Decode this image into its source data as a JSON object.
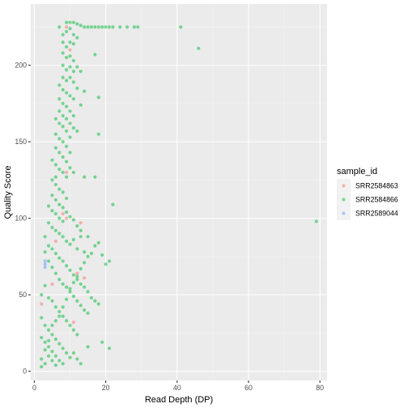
{
  "chart_data": {
    "type": "scatter",
    "xlabel": "Read Depth (DP)",
    "ylabel": "Quality Score",
    "xlim": [
      -1,
      82
    ],
    "ylim": [
      -6,
      240
    ],
    "x_ticks": [
      0,
      20,
      40,
      60,
      80
    ],
    "y_ticks": [
      0,
      50,
      100,
      150,
      200
    ],
    "grid": true,
    "legend_position": "right",
    "legend": {
      "title": "sample_id",
      "entries": [
        "SRR2584863",
        "SRR2584866",
        "SRR2589044"
      ]
    },
    "series": [
      {
        "name": "SRR2584863",
        "color": "#F8766D",
        "points": [
          [
            2,
            44
          ],
          [
            5,
            57
          ],
          [
            6,
            85
          ],
          [
            8,
            103
          ],
          [
            9,
            130
          ],
          [
            9,
            225
          ],
          [
            10,
            210
          ],
          [
            11,
            32
          ],
          [
            12,
            64
          ],
          [
            13,
            97
          ],
          [
            14,
            61
          ],
          [
            9,
            100
          ]
        ]
      },
      {
        "name": "SRR2584866",
        "color": "#00BA38",
        "points": [
          [
            9,
            228
          ],
          [
            10,
            228
          ],
          [
            11,
            228
          ],
          [
            12,
            227
          ],
          [
            13,
            226
          ],
          [
            14,
            225
          ],
          [
            15,
            225
          ],
          [
            16,
            225
          ],
          [
            17,
            225
          ],
          [
            18,
            225
          ],
          [
            19,
            225
          ],
          [
            20,
            225
          ],
          [
            21,
            225
          ],
          [
            22,
            225
          ],
          [
            24,
            225
          ],
          [
            26,
            225
          ],
          [
            28,
            225
          ],
          [
            29,
            225
          ],
          [
            41,
            225
          ],
          [
            46,
            211
          ],
          [
            79,
            98
          ],
          [
            7,
            225
          ],
          [
            8,
            220
          ],
          [
            9,
            222
          ],
          [
            10,
            224
          ],
          [
            11,
            220
          ],
          [
            8,
            215
          ],
          [
            9,
            212
          ],
          [
            10,
            215
          ],
          [
            11,
            214
          ],
          [
            12,
            218
          ],
          [
            17,
            207
          ],
          [
            8,
            208
          ],
          [
            9,
            205
          ],
          [
            10,
            206
          ],
          [
            11,
            203
          ],
          [
            12,
            199
          ],
          [
            13,
            196
          ],
          [
            8,
            200
          ],
          [
            9,
            197
          ],
          [
            10,
            199
          ],
          [
            11,
            196
          ],
          [
            8,
            192
          ],
          [
            9,
            190
          ],
          [
            10,
            192
          ],
          [
            11,
            189
          ],
          [
            12,
            185
          ],
          [
            14,
            183
          ],
          [
            7,
            187
          ],
          [
            8,
            184
          ],
          [
            9,
            182
          ],
          [
            10,
            180
          ],
          [
            11,
            178
          ],
          [
            18,
            179
          ],
          [
            13,
            174
          ],
          [
            7,
            178
          ],
          [
            8,
            175
          ],
          [
            9,
            173
          ],
          [
            10,
            170
          ],
          [
            11,
            167
          ],
          [
            7,
            170
          ],
          [
            8,
            167
          ],
          [
            9,
            165
          ],
          [
            10,
            162
          ],
          [
            11,
            159
          ],
          [
            12,
            157
          ],
          [
            18,
            155
          ],
          [
            6,
            165
          ],
          [
            7,
            162
          ],
          [
            8,
            160
          ],
          [
            9,
            157
          ],
          [
            10,
            153
          ],
          [
            6,
            155
          ],
          [
            7,
            152
          ],
          [
            8,
            150
          ],
          [
            9,
            147
          ],
          [
            10,
            143
          ],
          [
            6,
            146
          ],
          [
            7,
            143
          ],
          [
            8,
            140
          ],
          [
            9,
            137
          ],
          [
            10,
            133
          ],
          [
            11,
            130
          ],
          [
            5,
            138
          ],
          [
            6,
            135
          ],
          [
            7,
            132
          ],
          [
            8,
            130
          ],
          [
            9,
            127
          ],
          [
            14,
            127
          ],
          [
            17,
            127
          ],
          [
            6,
            127
          ],
          [
            5,
            125
          ],
          [
            6,
            122
          ],
          [
            7,
            119
          ],
          [
            8,
            117
          ],
          [
            9,
            113
          ],
          [
            22,
            109
          ],
          [
            5,
            115
          ],
          [
            6,
            112
          ],
          [
            7,
            109
          ],
          [
            8,
            107
          ],
          [
            9,
            104
          ],
          [
            10,
            101
          ],
          [
            4,
            108
          ],
          [
            5,
            105
          ],
          [
            6,
            103
          ],
          [
            7,
            100
          ],
          [
            8,
            98
          ],
          [
            11,
            99
          ],
          [
            12,
            95
          ],
          [
            13,
            92
          ],
          [
            15,
            88
          ],
          [
            4,
            97
          ],
          [
            5,
            94
          ],
          [
            6,
            92
          ],
          [
            7,
            90
          ],
          [
            8,
            88
          ],
          [
            9,
            85
          ],
          [
            10,
            83
          ],
          [
            12,
            80
          ],
          [
            14,
            78
          ],
          [
            16,
            77
          ],
          [
            17,
            82
          ],
          [
            18,
            84
          ],
          [
            19,
            76
          ],
          [
            20,
            70
          ],
          [
            21,
            72
          ],
          [
            11,
            86
          ],
          [
            13,
            88
          ],
          [
            3,
            88
          ],
          [
            4,
            82
          ],
          [
            5,
            80
          ],
          [
            6,
            77
          ],
          [
            7,
            74
          ],
          [
            8,
            72
          ],
          [
            9,
            69
          ],
          [
            10,
            66
          ],
          [
            11,
            63
          ],
          [
            12,
            60
          ],
          [
            13,
            57
          ],
          [
            14,
            55
          ],
          [
            15,
            52
          ],
          [
            16,
            48
          ],
          [
            17,
            46
          ],
          [
            18,
            44
          ],
          [
            3,
            78
          ],
          [
            4,
            72
          ],
          [
            5,
            68
          ],
          [
            6,
            64
          ],
          [
            7,
            60
          ],
          [
            8,
            57
          ],
          [
            9,
            55
          ],
          [
            10,
            52
          ],
          [
            11,
            49
          ],
          [
            12,
            46
          ],
          [
            13,
            43
          ],
          [
            14,
            40
          ],
          [
            15,
            38
          ],
          [
            2,
            50
          ],
          [
            3,
            56
          ],
          [
            4,
            48
          ],
          [
            5,
            46
          ],
          [
            6,
            42
          ],
          [
            7,
            39
          ],
          [
            8,
            36
          ],
          [
            9,
            33
          ],
          [
            10,
            30
          ],
          [
            11,
            27
          ],
          [
            12,
            24
          ],
          [
            2,
            35
          ],
          [
            3,
            30
          ],
          [
            4,
            27
          ],
          [
            5,
            24
          ],
          [
            6,
            21
          ],
          [
            7,
            18
          ],
          [
            8,
            15
          ],
          [
            9,
            12
          ],
          [
            10,
            9
          ],
          [
            11,
            12
          ],
          [
            12,
            8
          ],
          [
            13,
            5
          ],
          [
            15,
            16
          ],
          [
            19,
            19
          ],
          [
            21,
            15
          ],
          [
            2,
            22
          ],
          [
            3,
            19
          ],
          [
            4,
            16
          ],
          [
            5,
            13
          ],
          [
            6,
            10
          ],
          [
            7,
            7
          ],
          [
            8,
            5
          ],
          [
            2,
            8
          ],
          [
            3,
            5
          ],
          [
            4,
            10
          ],
          [
            5,
            7
          ],
          [
            6,
            4
          ],
          [
            2,
            3
          ],
          [
            3,
            14
          ],
          [
            4,
            20
          ],
          [
            5,
            30
          ],
          [
            6,
            33
          ],
          [
            7,
            36
          ],
          [
            8,
            42
          ],
          [
            9,
            47
          ],
          [
            10,
            54
          ],
          [
            11,
            58
          ],
          [
            12,
            62
          ],
          [
            13,
            67
          ],
          [
            14,
            71
          ],
          [
            15,
            75
          ]
        ]
      },
      {
        "name": "SRR2589044",
        "color": "#619CFF",
        "points": [
          [
            3,
            68
          ],
          [
            3,
            70
          ],
          [
            3,
            72
          ]
        ]
      }
    ]
  }
}
